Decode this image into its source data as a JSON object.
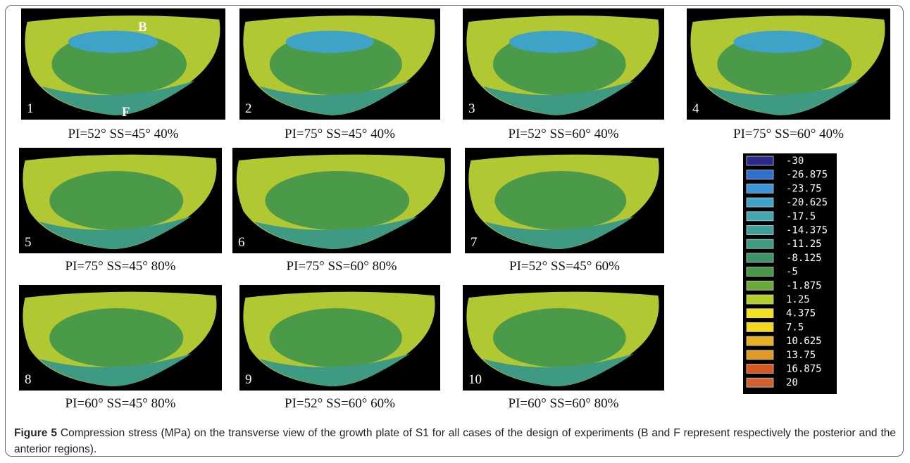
{
  "panels": [
    {
      "number": "1",
      "caption": "PI=52° SS=45° 40%"
    },
    {
      "number": "2",
      "caption": "PI=75° SS=45° 40%"
    },
    {
      "number": "3",
      "caption": "PI=52° SS=60° 40%"
    },
    {
      "number": "4",
      "caption": "PI=75° SS=60° 40%"
    },
    {
      "number": "5",
      "caption": "PI=75° SS=45° 80%"
    },
    {
      "number": "6",
      "caption": "PI=75° SS=60° 80%"
    },
    {
      "number": "7",
      "caption": "PI=52° SS=45° 60%"
    },
    {
      "number": "8",
      "caption": "PI=60° SS=45° 80%"
    },
    {
      "number": "9",
      "caption": "PI=52° SS=60° 60%"
    },
    {
      "number": "10",
      "caption": "PI=60° SS=60° 80%"
    }
  ],
  "region_labels": {
    "posterior": "B",
    "anterior": "F"
  },
  "legend": [
    {
      "label": "-30",
      "color": "#2a2a8c"
    },
    {
      "label": "-26.875",
      "color": "#2f6fd0"
    },
    {
      "label": "-23.75",
      "color": "#3a95d8"
    },
    {
      "label": "-20.625",
      "color": "#3fa3c8"
    },
    {
      "label": "-17.5",
      "color": "#42a8b0"
    },
    {
      "label": "-14.375",
      "color": "#3e9e98"
    },
    {
      "label": "-11.25",
      "color": "#3e9a80"
    },
    {
      "label": "-8.125",
      "color": "#3d9468"
    },
    {
      "label": "-5",
      "color": "#48984a"
    },
    {
      "label": "-1.875",
      "color": "#6aa83a"
    },
    {
      "label": "1.25",
      "color": "#b4cc2c"
    },
    {
      "label": "4.375",
      "color": "#f0e020"
    },
    {
      "label": "7.5",
      "color": "#f2d818"
    },
    {
      "label": "10.625",
      "color": "#e8b020"
    },
    {
      "label": "13.75",
      "color": "#e09a24"
    },
    {
      "label": "16.875",
      "color": "#d85a20"
    },
    {
      "label": "20",
      "color": "#d06030"
    }
  ],
  "caption": {
    "label": "Figure 5",
    "text": "Compression stress (MPa) on the transverse view of the growth plate of S1 for all cases of the design of experiments (B and F represent respectively the posterior and the anterior regions)."
  }
}
